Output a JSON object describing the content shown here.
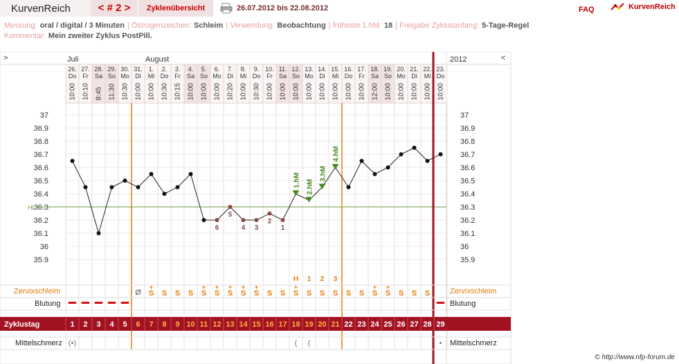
{
  "header": {
    "app_title": "KurvenReich",
    "cycle_nav": "< # 2 >",
    "tab": "Zyklenübersicht",
    "date_range": "26.07.2012 bis 22.08.2012",
    "faq": "FAQ",
    "logo_text": "KurvenReich"
  },
  "meta": {
    "messung_label": "Messung:",
    "messung": "oral / digital / 3 Minuten",
    "oestrogen_label": "Östrogenzeichen:",
    "oestrogen": "Schleim",
    "verwendung_label": "Verwendung:",
    "verwendung": "Beobachtung",
    "hm_label": "früheste 1.hM:",
    "hm": "18",
    "freigabe_label": "Freigabe Zyklusanfang:",
    "freigabe": "5-Tage-Regel",
    "kommentar_label": "Kommentar:",
    "kommentar": "Mein zweiter Zyklus PostPill."
  },
  "chart": {
    "nav_left": ">",
    "nav_right": "<",
    "year": "2012",
    "month1": "Juli",
    "month2": "August",
    "days": [
      {
        "d": "26.",
        "w": "Do",
        "t": "10:00",
        "cd": "1",
        "temp": 36.65,
        "s": "",
        "b": true,
        "m": "(•)"
      },
      {
        "d": "27.",
        "w": "Fr",
        "t": "10:10",
        "cd": "2",
        "temp": 36.45,
        "s": "",
        "b": true,
        "m": ""
      },
      {
        "d": "28.",
        "w": "Sa",
        "t": "8:45",
        "cd": "3",
        "temp": 36.1,
        "s": "",
        "b": true,
        "m": ""
      },
      {
        "d": "29.",
        "w": "So",
        "t": "11:30",
        "cd": "4",
        "temp": 36.45,
        "s": "",
        "b": true,
        "m": ""
      },
      {
        "d": "30.",
        "w": "Mo",
        "t": "10:30",
        "cd": "5",
        "temp": 36.5,
        "s": "",
        "b": true,
        "m": ""
      },
      {
        "d": "31.",
        "w": "Di",
        "t": "10:00",
        "cd": "6",
        "temp": 36.45,
        "s": "Ø",
        "b": false,
        "m": ""
      },
      {
        "d": "1.",
        "w": "Mi",
        "t": "10:00",
        "cd": "7",
        "temp": 36.55,
        "s": "S+",
        "b": false,
        "m": ""
      },
      {
        "d": "2.",
        "w": "Do",
        "t": "10:30",
        "cd": "8",
        "temp": 36.4,
        "s": "S",
        "b": false,
        "m": ""
      },
      {
        "d": "3.",
        "w": "Fr",
        "t": "10:15",
        "cd": "9",
        "temp": 36.45,
        "s": "S",
        "b": false,
        "m": ""
      },
      {
        "d": "4.",
        "w": "Sa",
        "t": "10:00",
        "cd": "10",
        "temp": 36.55,
        "s": "S",
        "b": false,
        "m": ""
      },
      {
        "d": "5.",
        "w": "So",
        "t": "10:00",
        "cd": "11",
        "temp": 36.2,
        "s": "S+",
        "b": false,
        "m": ""
      },
      {
        "d": "6.",
        "w": "Mo",
        "t": "10:00",
        "cd": "12",
        "temp": 36.2,
        "s": "S+",
        "b": false,
        "m": "",
        "n": "6"
      },
      {
        "d": "7.",
        "w": "Di",
        "t": "10:20",
        "cd": "13",
        "temp": 36.3,
        "s": "S+",
        "b": false,
        "m": "",
        "n": "5"
      },
      {
        "d": "8.",
        "w": "Mi",
        "t": "10:00",
        "cd": "14",
        "temp": 36.2,
        "s": "S+",
        "b": false,
        "m": "",
        "n": "4"
      },
      {
        "d": "9.",
        "w": "Do",
        "t": "10:30",
        "cd": "15",
        "temp": 36.2,
        "s": "S+",
        "b": false,
        "m": "",
        "n": "3"
      },
      {
        "d": "10.",
        "w": "Fr",
        "t": "10:00",
        "cd": "16",
        "temp": 36.25,
        "s": "S",
        "b": false,
        "m": "",
        "n": "2"
      },
      {
        "d": "11.",
        "w": "Sa",
        "t": "10:00",
        "cd": "17",
        "temp": 36.2,
        "s": "S",
        "b": false,
        "m": "",
        "n": "1"
      },
      {
        "d": "12.",
        "w": "So",
        "t": "10:00",
        "cd": "18",
        "temp": 36.4,
        "s": "S+",
        "b": false,
        "m": "(",
        "h": "1.hM",
        "e": "H"
      },
      {
        "d": "13.",
        "w": "Mo",
        "t": "10:00",
        "cd": "19",
        "temp": 36.35,
        "s": "S",
        "b": false,
        "m": "(",
        "h": "2.hM",
        "e": "1"
      },
      {
        "d": "14.",
        "w": "Di",
        "t": "10:00",
        "cd": "20",
        "temp": 36.45,
        "s": "S",
        "b": false,
        "m": "",
        "h": "3.hM",
        "e": "2"
      },
      {
        "d": "15.",
        "w": "Mi",
        "t": "10:00",
        "cd": "21",
        "temp": 36.6,
        "s": "S",
        "b": false,
        "m": "",
        "h": "4.hM",
        "e": "3"
      },
      {
        "d": "16.",
        "w": "Do",
        "t": "10:00",
        "cd": "22",
        "temp": 36.45,
        "s": "S",
        "b": false,
        "m": ""
      },
      {
        "d": "17.",
        "w": "Fr",
        "t": "10:00",
        "cd": "23",
        "temp": 36.65,
        "s": "S",
        "b": false,
        "m": ""
      },
      {
        "d": "18.",
        "w": "Sa",
        "t": "12:00",
        "cd": "24",
        "temp": 36.55,
        "s": "S+",
        "b": false,
        "m": ""
      },
      {
        "d": "19.",
        "w": "So",
        "t": "10:00",
        "cd": "25",
        "temp": 36.6,
        "s": "S+",
        "b": false,
        "m": ""
      },
      {
        "d": "20.",
        "w": "Mo",
        "t": "10:00",
        "cd": "26",
        "temp": 36.7,
        "s": "S",
        "b": false,
        "m": ""
      },
      {
        "d": "21.",
        "w": "Di",
        "t": "10:00",
        "cd": "27",
        "temp": 36.75,
        "s": "S",
        "b": false,
        "m": ""
      },
      {
        "d": "22.",
        "w": "Mi",
        "t": "10:00",
        "cd": "28",
        "temp": 36.65,
        "s": "S",
        "b": false,
        "m": ""
      },
      {
        "d": "23.",
        "w": "Do",
        "t": "10:00",
        "cd": "29",
        "temp": 36.7,
        "s": "",
        "b": true,
        "m": "•"
      }
    ],
    "yticks": [
      "37",
      "36.9",
      "36.8",
      "36.7",
      "36.6",
      "36.5",
      "36.4",
      "36.3",
      "36.2",
      "36.1",
      "36",
      "35.9"
    ],
    "hl_label": "HL",
    "hl_value": 36.3,
    "row_zervix": "Zervixschleim",
    "row_blutung": "Blutung",
    "row_zyklustag": "Zyklustag",
    "row_mittel": "Mittelschmerz",
    "copyright": "© http://www.nfp-forum.de",
    "colors": {
      "accent": "#a31222",
      "grid": "#e4d0d0",
      "orange": "#e87a0a",
      "line": "#222",
      "hl": "#6a9a40",
      "green": "#4a8a20"
    }
  }
}
